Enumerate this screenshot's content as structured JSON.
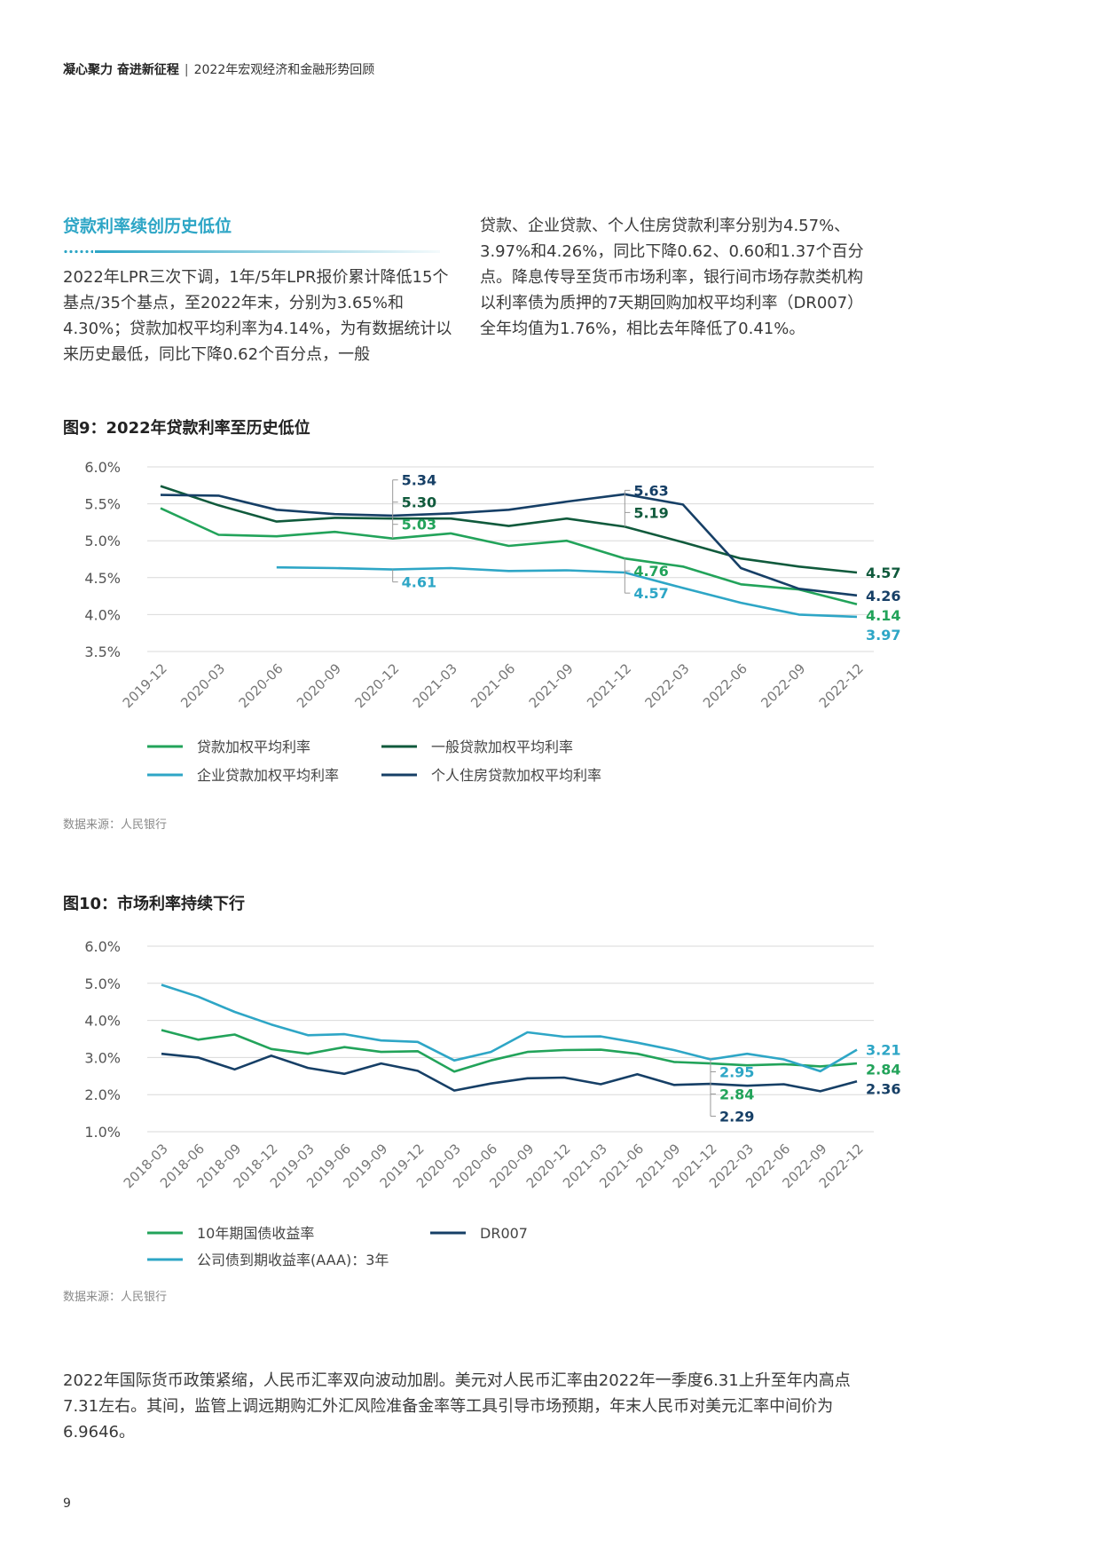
{
  "header": {
    "left": "凝心聚力 奋进新征程",
    "sep": "|",
    "right": "2022年宏观经济和金融形势回顾"
  },
  "section": {
    "title": "贷款利率续创历史低位",
    "para_left": "2022年LPR三次下调，1年/5年LPR报价累计降低15个基点/35个基点，至2022年末，分别为3.65%和4.30%；贷款加权平均利率为4.14%，为有数据统计以来历史最低，同比下降0.62个百分点，一般",
    "para_right": "贷款、企业贷款、个人住房贷款利率分别为4.57%、3.97%和4.26%，同比下降0.62、0.60和1.37个百分点。降息传导至货币市场利率，银行间市场存款类机构以利率债为质押的7天期回购加权平均利率（DR007）全年均值为1.76%，相比去年降低了0.41%。"
  },
  "fig9": {
    "title": "图9：2022年贷款利率至历史低位",
    "source": "数据来源：人民银行"
  },
  "fig10": {
    "title": "图10：市场利率持续下行",
    "source": "数据来源：人民银行"
  },
  "bottom_paragraph": "2022年国际货币政策紧缩，人民币汇率双向波动加剧。美元对人民币汇率由2022年一季度6.31上升至年内高点7.31左右。其间，监管上调远期购汇外汇风险准备金率等工具引导市场预期，年末人民币对美元汇率中间价为6.9646。",
  "page_number": "9",
  "colors": {
    "green": "#22a35a",
    "dark_green": "#105a3c",
    "light_blue": "#2ea6c6",
    "navy": "#163f66",
    "grid": "#d9d9d9",
    "accent": "#2ea6c6"
  },
  "chart_data": [
    {
      "type": "line",
      "title": "图9：2022年贷款利率至历史低位",
      "categories": [
        "2019-12",
        "2020-03",
        "2020-06",
        "2020-09",
        "2020-12",
        "2021-03",
        "2021-06",
        "2021-09",
        "2021-12",
        "2022-03",
        "2022-06",
        "2022-09",
        "2022-12"
      ],
      "y_ticks": [
        "6.0%",
        "5.5%",
        "5.0%",
        "4.5%",
        "4.0%",
        "3.5%"
      ],
      "ylim": [
        3.5,
        6.0
      ],
      "grid": true,
      "legend_position": "bottom",
      "series": [
        {
          "name": "贷款加权平均利率",
          "color": "#22a35a",
          "values": [
            5.44,
            5.08,
            5.06,
            5.12,
            5.03,
            5.1,
            4.93,
            5.0,
            4.76,
            4.65,
            4.41,
            4.34,
            4.14
          ]
        },
        {
          "name": "一般贷款加权平均利率",
          "color": "#105a3c",
          "values": [
            5.74,
            5.48,
            5.26,
            5.31,
            5.3,
            5.3,
            5.2,
            5.3,
            5.19,
            4.98,
            4.76,
            4.65,
            4.57
          ]
        },
        {
          "name": "企业贷款加权平均利率",
          "color": "#2ea6c6",
          "values": [
            null,
            null,
            4.64,
            4.63,
            4.61,
            4.63,
            4.59,
            4.6,
            4.57,
            4.36,
            4.16,
            4.0,
            3.97
          ]
        },
        {
          "name": "个人住房贷款加权平均利率",
          "color": "#163f66",
          "values": [
            5.62,
            5.61,
            5.42,
            5.36,
            5.34,
            5.37,
            5.42,
            5.53,
            5.63,
            5.49,
            4.63,
            4.35,
            4.26
          ]
        }
      ],
      "annotations": [
        {
          "text": "5.34",
          "series": 3,
          "index": 4,
          "color": "#163f66"
        },
        {
          "text": "5.30",
          "series": 1,
          "index": 4,
          "color": "#105a3c"
        },
        {
          "text": "5.03",
          "series": 0,
          "index": 4,
          "color": "#22a35a"
        },
        {
          "text": "4.61",
          "series": 2,
          "index": 4,
          "color": "#2ea6c6"
        },
        {
          "text": "5.63",
          "series": 3,
          "index": 8,
          "color": "#163f66"
        },
        {
          "text": "5.19",
          "series": 1,
          "index": 8,
          "color": "#105a3c"
        },
        {
          "text": "4.76",
          "series": 0,
          "index": 8,
          "color": "#22a35a"
        },
        {
          "text": "4.57",
          "series": 2,
          "index": 8,
          "color": "#2ea6c6"
        },
        {
          "text": "4.57",
          "series": 1,
          "index": 12,
          "color": "#105a3c"
        },
        {
          "text": "4.26",
          "series": 3,
          "index": 12,
          "color": "#163f66"
        },
        {
          "text": "4.14",
          "series": 0,
          "index": 12,
          "color": "#22a35a"
        },
        {
          "text": "3.97",
          "series": 2,
          "index": 12,
          "color": "#2ea6c6"
        }
      ]
    },
    {
      "type": "line",
      "title": "图10：市场利率持续下行",
      "categories": [
        "2018-03",
        "2018-06",
        "2018-09",
        "2018-12",
        "2019-03",
        "2019-06",
        "2019-09",
        "2019-12",
        "2020-03",
        "2020-06",
        "2020-09",
        "2020-12",
        "2021-03",
        "2021-06",
        "2021-09",
        "2021-12",
        "2022-03",
        "2022-06",
        "2022-09",
        "2022-12"
      ],
      "y_ticks": [
        "6.0%",
        "5.0%",
        "4.0%",
        "3.0%",
        "2.0%",
        "1.0%"
      ],
      "ylim": [
        1.0,
        6.0
      ],
      "grid": true,
      "legend_position": "bottom",
      "series": [
        {
          "name": "10年期国债收益率",
          "color": "#22a35a",
          "values": [
            3.74,
            3.48,
            3.62,
            3.23,
            3.1,
            3.28,
            3.15,
            3.17,
            2.62,
            2.92,
            3.15,
            3.2,
            3.21,
            3.1,
            2.88,
            2.84,
            2.79,
            2.82,
            2.76,
            2.84
          ]
        },
        {
          "name": "DR007",
          "color": "#163f66",
          "values": [
            3.1,
            3.0,
            2.68,
            3.05,
            2.72,
            2.56,
            2.84,
            2.64,
            2.11,
            2.3,
            2.44,
            2.46,
            2.28,
            2.55,
            2.26,
            2.29,
            2.24,
            2.28,
            2.09,
            2.36
          ]
        },
        {
          "name": "公司债到期收益率(AAA)：3年",
          "color": "#2ea6c6",
          "values": [
            4.96,
            4.64,
            4.23,
            3.89,
            3.6,
            3.63,
            3.46,
            3.42,
            2.92,
            3.15,
            3.68,
            3.56,
            3.57,
            3.4,
            3.2,
            2.95,
            3.1,
            2.95,
            2.63,
            3.21
          ]
        }
      ],
      "annotations": [
        {
          "text": "2.95",
          "series": 2,
          "index": 15,
          "color": "#2ea6c6"
        },
        {
          "text": "2.84",
          "series": 0,
          "index": 15,
          "color": "#22a35a"
        },
        {
          "text": "2.29",
          "series": 1,
          "index": 15,
          "color": "#163f66"
        },
        {
          "text": "3.21",
          "series": 2,
          "index": 19,
          "color": "#2ea6c6"
        },
        {
          "text": "2.84",
          "series": 0,
          "index": 19,
          "color": "#22a35a"
        },
        {
          "text": "2.36",
          "series": 1,
          "index": 19,
          "color": "#163f66"
        }
      ]
    }
  ]
}
